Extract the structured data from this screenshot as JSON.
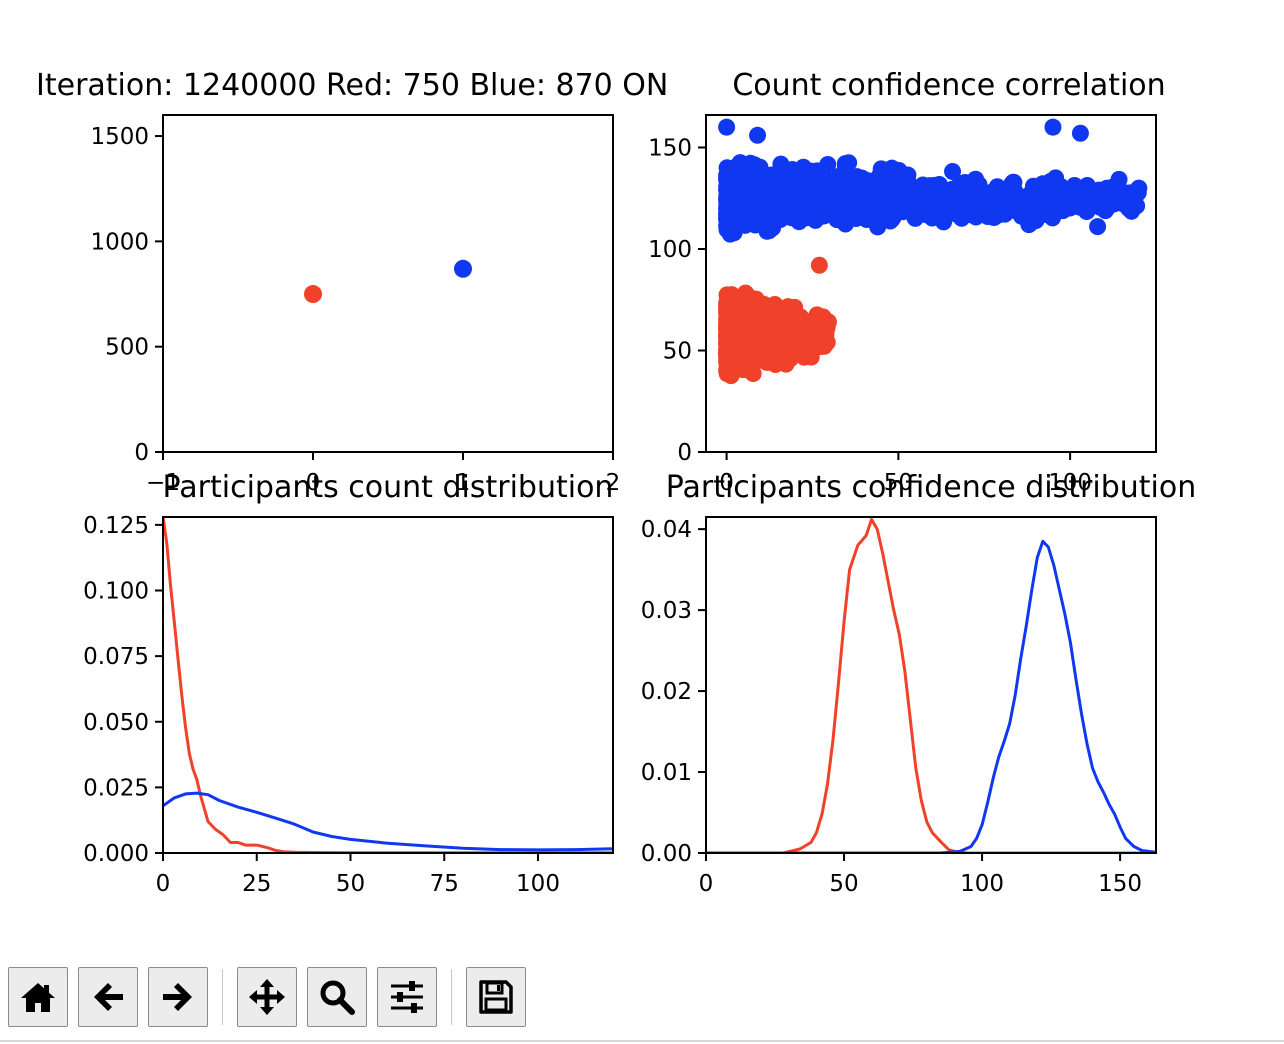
{
  "colors": {
    "red": "#f0412a",
    "blue": "#1038f0"
  },
  "chart_data": [
    {
      "type": "scatter",
      "title": "Iteration: 1240000 Red: 750 Blue: 870 ON",
      "xlim": [
        -1,
        2
      ],
      "ylim": [
        0,
        1600
      ],
      "xticks": [
        -1,
        0,
        1,
        2
      ],
      "yticks": [
        0,
        500,
        1000,
        1500
      ],
      "points": [
        {
          "x": 0,
          "y": 750,
          "color": "red"
        },
        {
          "x": 1,
          "y": 870,
          "color": "blue"
        }
      ]
    },
    {
      "type": "scatter",
      "title": "Count confidence correlation",
      "xlim": [
        -6,
        125
      ],
      "ylim": [
        0,
        166
      ],
      "xticks": [
        0,
        50,
        100
      ],
      "yticks": [
        0,
        50,
        100,
        150
      ],
      "series": [
        {
          "color": "red",
          "cluster": {
            "x_range": [
              0,
              30
            ],
            "y_range": [
              32,
              88
            ],
            "center_y": 58,
            "count": 750
          },
          "outliers": [
            [
              27,
              92
            ],
            [
              25,
              50
            ],
            [
              15,
              48
            ],
            [
              29,
              64
            ]
          ]
        },
        {
          "color": "blue",
          "cluster": {
            "x_range": [
              0,
              120
            ],
            "y_range": [
              95,
              160
            ],
            "center_y": 125,
            "count": 870
          },
          "outliers": [
            [
              0,
              160
            ],
            [
              95,
              160
            ],
            [
              103,
              157
            ],
            [
              108,
              111
            ],
            [
              88,
              112
            ],
            [
              120,
              130
            ],
            [
              76,
              116
            ],
            [
              9,
              156
            ]
          ]
        }
      ]
    },
    {
      "type": "line",
      "title": "Participants count distribution",
      "xlim": [
        0,
        120
      ],
      "ylim": [
        0,
        0.128
      ],
      "xticks": [
        0,
        25,
        50,
        75,
        100
      ],
      "yticks": [
        0.0,
        0.025,
        0.05,
        0.075,
        0.1,
        0.125
      ],
      "ytick_labels": [
        "0.000",
        "0.025",
        "0.050",
        "0.075",
        "0.100",
        "0.125"
      ],
      "series": [
        {
          "color": "red",
          "x": [
            0,
            1,
            2,
            3,
            4,
            5,
            6,
            7,
            8,
            9,
            10,
            12,
            14,
            16,
            18,
            20,
            22,
            25,
            28,
            30,
            32,
            35,
            40,
            50,
            60,
            80,
            100,
            120
          ],
          "y": [
            0.128,
            0.118,
            0.102,
            0.088,
            0.074,
            0.06,
            0.048,
            0.038,
            0.032,
            0.028,
            0.022,
            0.012,
            0.009,
            0.007,
            0.004,
            0.004,
            0.003,
            0.003,
            0.002,
            0.001,
            0.0005,
            0.0003,
            0.0002,
            0.0001,
            0.0001,
            0.0001,
            0.0001,
            0.0001
          ]
        },
        {
          "color": "blue",
          "x": [
            0,
            3,
            6,
            9,
            12,
            15,
            20,
            25,
            30,
            35,
            40,
            45,
            50,
            60,
            70,
            80,
            90,
            100,
            110,
            120
          ],
          "y": [
            0.018,
            0.021,
            0.0225,
            0.0228,
            0.0222,
            0.02,
            0.0175,
            0.0155,
            0.0133,
            0.011,
            0.008,
            0.0063,
            0.0052,
            0.0037,
            0.0027,
            0.0018,
            0.0013,
            0.0012,
            0.0013,
            0.0016
          ]
        }
      ]
    },
    {
      "type": "line",
      "title": "Participants confidence distribution",
      "xlim": [
        0,
        163
      ],
      "ylim": [
        0,
        0.0415
      ],
      "xticks": [
        0,
        50,
        100,
        150
      ],
      "yticks": [
        0.0,
        0.01,
        0.02,
        0.03,
        0.04
      ],
      "ytick_labels": [
        "0.00",
        "0.01",
        "0.02",
        "0.03",
        "0.04"
      ],
      "series": [
        {
          "color": "red",
          "x": [
            0,
            28,
            34,
            38,
            40,
            42,
            44,
            46,
            48,
            50,
            52,
            55,
            58,
            60,
            62,
            64,
            66,
            68,
            70,
            72,
            74,
            76,
            78,
            80,
            82,
            85,
            88,
            91,
            95,
            163
          ],
          "y": [
            0,
            0,
            0.0005,
            0.0013,
            0.0025,
            0.0048,
            0.0085,
            0.014,
            0.021,
            0.0285,
            0.035,
            0.038,
            0.0392,
            0.0412,
            0.04,
            0.037,
            0.0335,
            0.03,
            0.027,
            0.0225,
            0.0165,
            0.0105,
            0.0065,
            0.0038,
            0.0025,
            0.0014,
            0.0004,
            0.0001,
            0,
            0
          ]
        },
        {
          "color": "blue",
          "x": [
            0,
            85,
            92,
            96,
            98,
            100,
            102,
            104,
            106,
            108,
            110,
            112,
            114,
            116,
            118,
            120,
            122,
            124,
            126,
            128,
            130,
            132,
            134,
            136,
            138,
            140,
            142,
            144,
            146,
            148,
            150,
            152,
            155,
            158,
            163
          ],
          "y": [
            0,
            0,
            0.0002,
            0.0008,
            0.0018,
            0.0035,
            0.0062,
            0.0092,
            0.0118,
            0.0138,
            0.016,
            0.0195,
            0.024,
            0.028,
            0.0325,
            0.0365,
            0.0385,
            0.0378,
            0.0355,
            0.0325,
            0.0295,
            0.026,
            0.0215,
            0.0172,
            0.0135,
            0.0105,
            0.0088,
            0.0075,
            0.006,
            0.0048,
            0.0032,
            0.0018,
            0.0008,
            0.0003,
            0.0001
          ]
        }
      ]
    }
  ],
  "toolbar": [
    {
      "name": "home-icon",
      "label": "Home"
    },
    {
      "name": "back-arrow-icon",
      "label": "Back"
    },
    {
      "name": "forward-arrow-icon",
      "label": "Forward"
    },
    {
      "name": "pan-move-icon",
      "label": "Pan"
    },
    {
      "name": "zoom-magnifier-icon",
      "label": "Zoom"
    },
    {
      "name": "configure-sliders-icon",
      "label": "Configure subplots"
    },
    {
      "name": "save-floppy-icon",
      "label": "Save"
    }
  ]
}
